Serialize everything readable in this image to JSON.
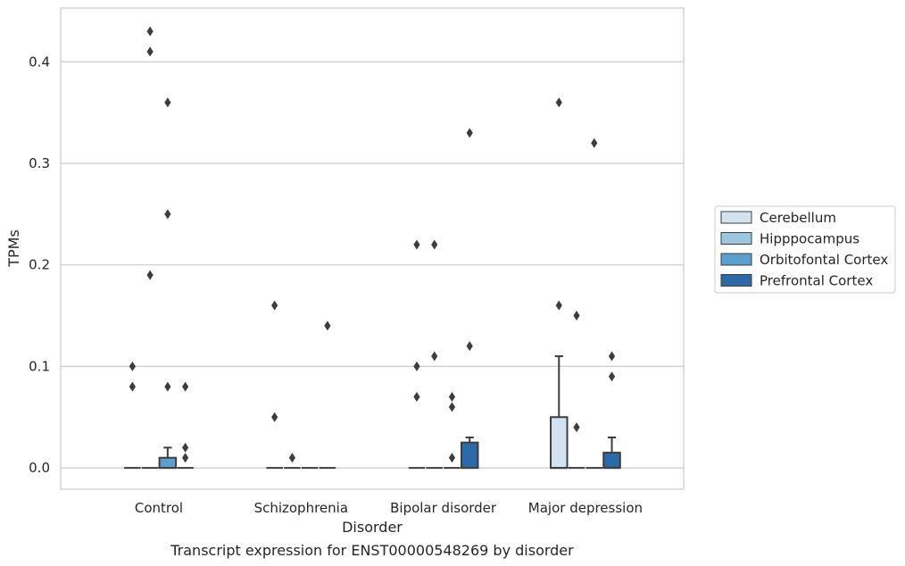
{
  "chart_data": {
    "type": "box",
    "xlabel": "Disorder",
    "ylabel": "TPMs",
    "caption": "Transcript expression for ENST00000548269 by disorder",
    "ylim": [
      -0.021,
      0.453
    ],
    "yticks": [
      "0.0",
      "0.1",
      "0.2",
      "0.3",
      "0.4"
    ],
    "ytick_values": [
      0.0,
      0.1,
      0.2,
      0.3,
      0.4
    ],
    "grid": "horizontal",
    "legend_position": "right",
    "categories": [
      "Control",
      "Schizophrenia",
      "Bipolar disorder",
      "Major depression"
    ],
    "series": [
      {
        "name": "Cerebellum",
        "color": "#d2e2f1",
        "boxes": [
          {
            "q1": 0,
            "median": 0,
            "q3": 0,
            "whisker_low": 0,
            "whisker_high": 0,
            "outliers": [
              0.1,
              0.08
            ]
          },
          {
            "q1": 0,
            "median": 0,
            "q3": 0,
            "whisker_low": 0,
            "whisker_high": 0,
            "outliers": [
              0.16,
              0.05
            ]
          },
          {
            "q1": 0,
            "median": 0,
            "q3": 0,
            "whisker_low": 0,
            "whisker_high": 0,
            "outliers": [
              0.22,
              0.1,
              0.07
            ]
          },
          {
            "q1": 0,
            "median": 0,
            "q3": 0.05,
            "whisker_low": 0,
            "whisker_high": 0.11,
            "outliers": [
              0.36,
              0.16
            ]
          }
        ]
      },
      {
        "name": "Hipppocampus",
        "color": "#9ac8e0",
        "boxes": [
          {
            "q1": 0,
            "median": 0,
            "q3": 0,
            "whisker_low": 0,
            "whisker_high": 0,
            "outliers": [
              0.43,
              0.41,
              0.19
            ]
          },
          {
            "q1": 0,
            "median": 0,
            "q3": 0,
            "whisker_low": 0,
            "whisker_high": 0,
            "outliers": [
              0.01
            ]
          },
          {
            "q1": 0,
            "median": 0,
            "q3": 0,
            "whisker_low": 0,
            "whisker_high": 0,
            "outliers": [
              0.22,
              0.11
            ]
          },
          {
            "q1": 0,
            "median": 0,
            "q3": 0,
            "whisker_low": 0,
            "whisker_high": 0,
            "outliers": [
              0.15,
              0.04
            ]
          }
        ]
      },
      {
        "name": "Orbitofontal Cortex",
        "color": "#5c9fcf",
        "boxes": [
          {
            "q1": 0,
            "median": 0,
            "q3": 0.01,
            "whisker_low": 0,
            "whisker_high": 0.02,
            "outliers": [
              0.36,
              0.25,
              0.08
            ]
          },
          {
            "q1": 0,
            "median": 0,
            "q3": 0,
            "whisker_low": 0,
            "whisker_high": 0,
            "outliers": []
          },
          {
            "q1": 0,
            "median": 0,
            "q3": 0,
            "whisker_low": 0,
            "whisker_high": 0,
            "outliers": [
              0.07,
              0.06,
              0.01
            ]
          },
          {
            "q1": 0,
            "median": 0,
            "q3": 0,
            "whisker_low": 0,
            "whisker_high": 0,
            "outliers": [
              0.32
            ]
          }
        ]
      },
      {
        "name": "Prefrontal Cortex",
        "color": "#2a6aa8",
        "boxes": [
          {
            "q1": 0,
            "median": 0,
            "q3": 0,
            "whisker_low": 0,
            "whisker_high": 0,
            "outliers": [
              0.08,
              0.02,
              0.01
            ]
          },
          {
            "q1": 0,
            "median": 0,
            "q3": 0,
            "whisker_low": 0,
            "whisker_high": 0,
            "outliers": [
              0.14
            ]
          },
          {
            "q1": 0,
            "median": 0,
            "q3": 0.025,
            "whisker_low": 0,
            "whisker_high": 0.03,
            "outliers": [
              0.33,
              0.12
            ]
          },
          {
            "q1": 0,
            "median": 0,
            "q3": 0.015,
            "whisker_low": 0,
            "whisker_high": 0.03,
            "outliers": [
              0.11,
              0.09
            ]
          }
        ]
      }
    ]
  }
}
